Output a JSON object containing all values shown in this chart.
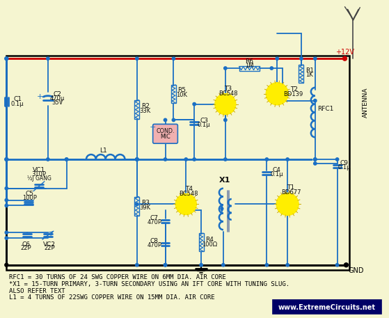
{
  "bg": "#f5f5d0",
  "bc": "#1a6fc4",
  "rc": "#cc0000",
  "blk": "#000000",
  "yc": "#ffee00",
  "yc_edge": "#ccaa00",
  "footer": [
    "RFC1 = 30 TURNS OF 24 SWG COPPER WIRE ON 6MM DIA. AIR CORE",
    "*X1 = 15-TURN PRIMARY, 3-TURN SECONDARY USING AN IFT CORE WITH TUNING SLUG.",
    "ALSO REFER TEXT",
    "L1 = 4 TURNS OF 22SWG COPPER WIRE ON 15MM DIA. AIR CORE"
  ],
  "website": "www.ExtremeCircuits.net"
}
